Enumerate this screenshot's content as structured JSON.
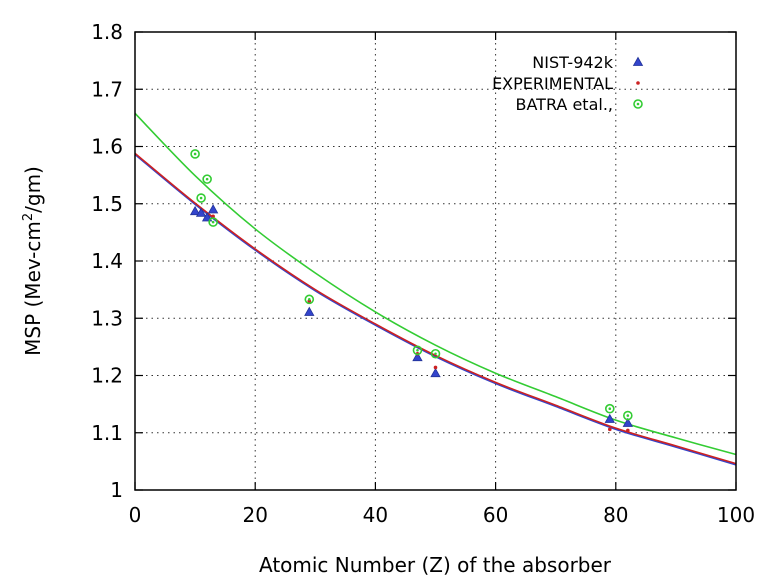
{
  "chart_data": {
    "type": "scatter",
    "xlabel": "Atomic Number (Z) of the absorber",
    "ylabel_parts": [
      "MSP (Mev-cm",
      "2",
      "/gm)"
    ],
    "xlim": [
      0,
      100
    ],
    "ylim": [
      1.0,
      1.8
    ],
    "x_ticks": [
      0,
      20,
      40,
      60,
      80,
      100
    ],
    "y_ticks": [
      1,
      1.1,
      1.2,
      1.3,
      1.4,
      1.5,
      1.6,
      1.7,
      1.8
    ],
    "grid": "dotted",
    "legend_position": "top-right",
    "series": [
      {
        "name": "NIST-942k",
        "marker": "triangle",
        "color": "#3344cc",
        "points": [
          [
            10,
            1.487
          ],
          [
            11,
            1.484
          ],
          [
            12,
            1.476
          ],
          [
            13,
            1.49
          ],
          [
            29,
            1.311
          ],
          [
            47,
            1.232
          ],
          [
            50,
            1.204
          ],
          [
            79,
            1.124
          ],
          [
            82,
            1.117
          ]
        ]
      },
      {
        "name": "EXPERIMENTAL",
        "marker": "dot",
        "color": "#cc2222",
        "points": [
          [
            13,
            1.478
          ],
          [
            29,
            1.33
          ],
          [
            47,
            1.238
          ],
          [
            50,
            1.214
          ],
          [
            79,
            1.106
          ],
          [
            82,
            1.104
          ]
        ]
      },
      {
        "name": "BATRA etal.,",
        "marker": "circle-dot",
        "color": "#33cc33",
        "points": [
          [
            10,
            1.587
          ],
          [
            11,
            1.51
          ],
          [
            12,
            1.543
          ],
          [
            13,
            1.468
          ],
          [
            29,
            1.333
          ],
          [
            47,
            1.244
          ],
          [
            50,
            1.238
          ],
          [
            79,
            1.142
          ],
          [
            82,
            1.13
          ]
        ]
      }
    ],
    "fit_curves": [
      {
        "color": "#3344cc",
        "points": [
          [
            0,
            1.586
          ],
          [
            10,
            1.499
          ],
          [
            20,
            1.419
          ],
          [
            30,
            1.348
          ],
          [
            40,
            1.288
          ],
          [
            50,
            1.233
          ],
          [
            60,
            1.186
          ],
          [
            70,
            1.146
          ],
          [
            80,
            1.106
          ],
          [
            90,
            1.075
          ],
          [
            100,
            1.044
          ]
        ]
      },
      {
        "color": "#cc2222",
        "points": [
          [
            0,
            1.588
          ],
          [
            10,
            1.501
          ],
          [
            20,
            1.421
          ],
          [
            30,
            1.35
          ],
          [
            40,
            1.29
          ],
          [
            50,
            1.235
          ],
          [
            60,
            1.188
          ],
          [
            70,
            1.148
          ],
          [
            80,
            1.108
          ],
          [
            90,
            1.077
          ],
          [
            100,
            1.046
          ]
        ]
      },
      {
        "color": "#33cc33",
        "points": [
          [
            0,
            1.658
          ],
          [
            10,
            1.549
          ],
          [
            20,
            1.456
          ],
          [
            30,
            1.379
          ],
          [
            40,
            1.311
          ],
          [
            50,
            1.253
          ],
          [
            60,
            1.204
          ],
          [
            70,
            1.163
          ],
          [
            80,
            1.122
          ],
          [
            90,
            1.091
          ],
          [
            100,
            1.062
          ]
        ]
      }
    ]
  }
}
